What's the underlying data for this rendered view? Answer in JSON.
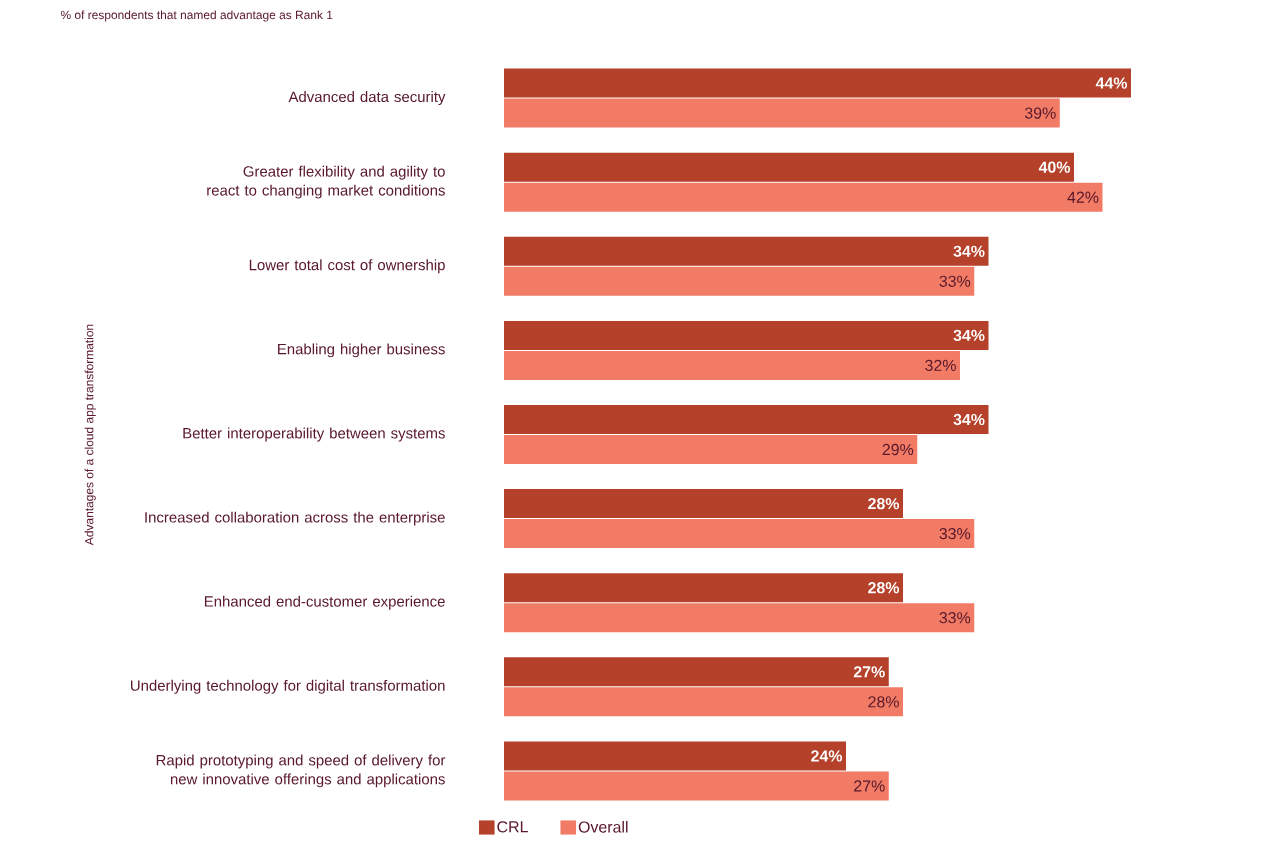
{
  "chart_data": {
    "type": "bar",
    "orientation": "horizontal",
    "title": "% of respondents that named advantage as Rank 1",
    "ylabel": "Advantages of a cloud app transformation",
    "categories": [
      "Advanced data security",
      "Greater flexibility and agility to react to changing market conditions",
      "Lower total cost of ownership",
      "Enabling higher business",
      "Better interoperability between systems",
      "Increased collaboration across the enterprise",
      "Enhanced end-customer experience",
      "Underlying technology for digital transformation",
      "Rapid prototyping and speed of delivery for new innovative offerings and applications"
    ],
    "series": [
      {
        "name": "CRL",
        "color": "#b5412a",
        "values": [
          44,
          40,
          34,
          34,
          34,
          28,
          28,
          27,
          24
        ],
        "value_labels": [
          "44%",
          "40%",
          "34%",
          "34%",
          "34%",
          "28%",
          "28%",
          "27%",
          "24%"
        ]
      },
      {
        "name": "Overall",
        "color": "#f27b66",
        "values": [
          39,
          42,
          33,
          32,
          29,
          33,
          33,
          28,
          27
        ],
        "value_labels": [
          "39%",
          "42%",
          "33%",
          "32%",
          "29%",
          "33%",
          "33%",
          "28%",
          "27%"
        ]
      }
    ],
    "tick_labels": "y",
    "legend": "bottom"
  }
}
